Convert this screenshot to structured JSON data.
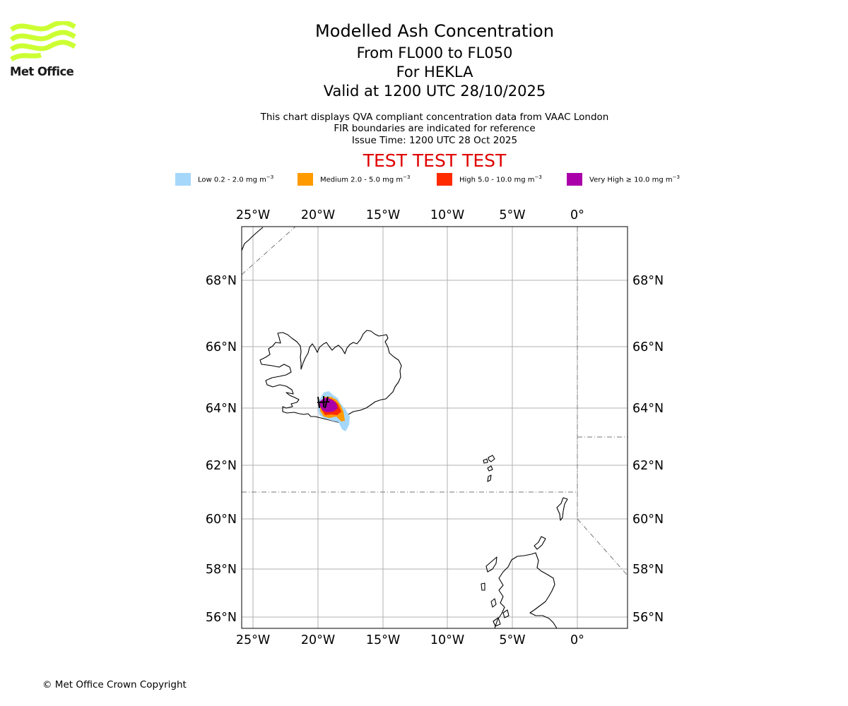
{
  "logo": {
    "text": "Met Office",
    "color": "#ccff33"
  },
  "header": {
    "title": "Modelled Ash Concentration",
    "level": "From FL000 to FL050",
    "volcano": "For HEKLA",
    "valid": "Valid at 1200 UTC 28/10/2025",
    "info_line1": "This chart displays QVA compliant concentration data from VAAC London",
    "info_line2": "FIR boundaries are indicated for reference",
    "issue_time": "Issue Time: 1200 UTC 28 Oct 2025",
    "test_banner": "TEST TEST TEST"
  },
  "legend": [
    {
      "label": "Low 0.2 - 2.0 mg m",
      "color": "#a5d7fa"
    },
    {
      "label": "Medium 2.0 - 5.0 mg m",
      "color": "#ff9a00"
    },
    {
      "label": "High 5.0 - 10.0 mg m",
      "color": "#ff2a00"
    },
    {
      "label": "Very High ≥ 10.0 mg m",
      "color": "#aa00aa"
    }
  ],
  "legend_unit_exponent": "−3",
  "map": {
    "lon_labels": [
      "25°W",
      "20°W",
      "15°W",
      "10°W",
      "5°W",
      "0°"
    ],
    "lat_labels": [
      "68°N",
      "66°N",
      "64°N",
      "62°N",
      "60°N",
      "58°N",
      "56°N"
    ],
    "grid_color": "#b0b0b0"
  },
  "footer": {
    "copyright": "© Met Office Crown Copyright"
  }
}
